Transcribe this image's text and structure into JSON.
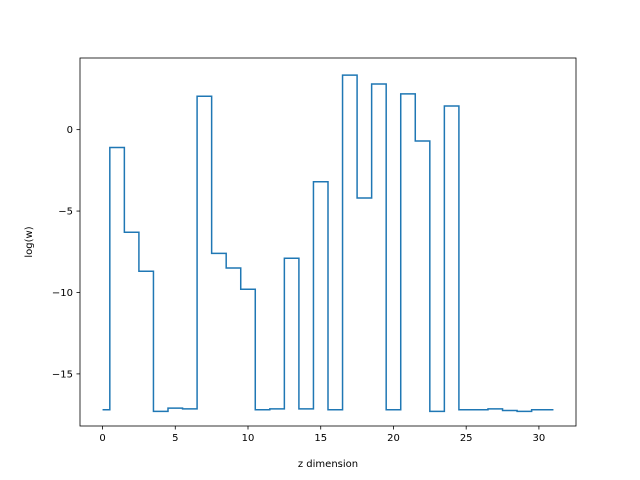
{
  "chart_data": {
    "type": "line",
    "style": "step-mid",
    "title": "",
    "xlabel": "z dimension",
    "ylabel": "log(w)",
    "xlim": [
      -1.55,
      32.55
    ],
    "ylim": [
      -18.2,
      4.4
    ],
    "xticks": [
      0,
      5,
      10,
      15,
      20,
      25,
      30
    ],
    "yticks": [
      -15,
      -10,
      -5,
      0
    ],
    "ytick_labels": [
      "−15",
      "−10",
      "−5",
      "0"
    ],
    "grid": false,
    "legend": "none",
    "series": [
      {
        "color": "#1f77b4",
        "x": [
          0,
          1,
          2,
          3,
          4,
          5,
          6,
          7,
          8,
          9,
          10,
          11,
          12,
          13,
          14,
          15,
          16,
          17,
          18,
          19,
          20,
          21,
          22,
          23,
          24,
          25,
          26,
          27,
          28,
          29,
          30,
          31
        ],
        "y": [
          -17.2,
          -1.1,
          -6.3,
          -8.7,
          -17.3,
          -17.1,
          -17.15,
          2.05,
          -7.6,
          -8.5,
          -9.8,
          -17.2,
          -17.15,
          -7.9,
          -17.15,
          -3.2,
          -17.2,
          3.35,
          -4.2,
          2.8,
          -17.2,
          2.2,
          -0.7,
          -17.3,
          1.45,
          -17.2,
          -17.2,
          -17.15,
          -17.25,
          -17.3,
          -17.2,
          -17.2
        ]
      }
    ]
  }
}
